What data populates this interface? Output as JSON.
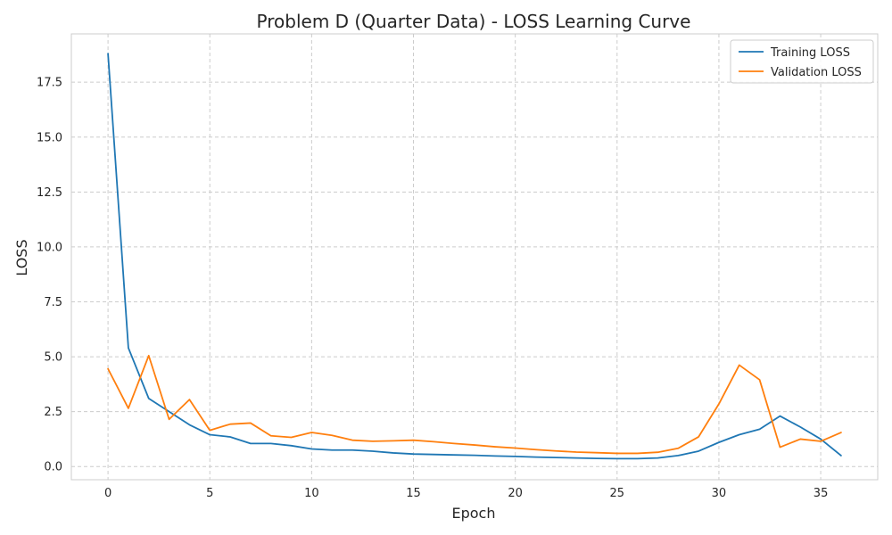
{
  "chart_data": {
    "type": "line",
    "title": "Problem D (Quarter Data) - LOSS Learning Curve",
    "xlabel": "Epoch",
    "ylabel": "LOSS",
    "xlim": [
      -1.8,
      37.8
    ],
    "ylim": [
      -0.6,
      19.7
    ],
    "x_ticks": [
      0,
      5,
      10,
      15,
      20,
      25,
      30,
      35
    ],
    "y_ticks": [
      0.0,
      2.5,
      5.0,
      7.5,
      10.0,
      12.5,
      15.0,
      17.5
    ],
    "x_tick_labels": [
      "0",
      "5",
      "10",
      "15",
      "20",
      "25",
      "30",
      "35"
    ],
    "y_tick_labels": [
      "0.0",
      "2.5",
      "5.0",
      "7.5",
      "10.0",
      "12.5",
      "15.0",
      "17.5"
    ],
    "grid": true,
    "legend_position": "top-right",
    "x": [
      0,
      1,
      2,
      3,
      4,
      5,
      6,
      7,
      8,
      9,
      10,
      11,
      12,
      13,
      14,
      15,
      16,
      17,
      18,
      19,
      20,
      21,
      22,
      23,
      24,
      25,
      26,
      27,
      28,
      29,
      30,
      31,
      32,
      33,
      34,
      35,
      36
    ],
    "series": [
      {
        "name": "Training LOSS",
        "color": "#1f77b4",
        "values": [
          18.8,
          5.4,
          3.1,
          2.5,
          1.9,
          1.45,
          1.35,
          1.05,
          1.05,
          0.95,
          0.8,
          0.75,
          0.75,
          0.7,
          0.62,
          0.57,
          0.55,
          0.53,
          0.51,
          0.48,
          0.46,
          0.43,
          0.41,
          0.39,
          0.37,
          0.36,
          0.36,
          0.39,
          0.5,
          0.7,
          1.1,
          1.45,
          1.7,
          2.3,
          1.8,
          1.25,
          0.5
        ]
      },
      {
        "name": "Validation LOSS",
        "color": "#ff7f0e",
        "values": [
          4.45,
          2.65,
          5.05,
          2.15,
          3.05,
          1.65,
          1.93,
          1.98,
          1.4,
          1.33,
          1.55,
          1.42,
          1.2,
          1.15,
          1.17,
          1.2,
          1.13,
          1.05,
          0.98,
          0.9,
          0.84,
          0.77,
          0.71,
          0.66,
          0.63,
          0.6,
          0.6,
          0.65,
          0.83,
          1.35,
          2.85,
          4.62,
          3.95,
          0.88,
          1.25,
          1.15,
          1.55
        ]
      }
    ]
  }
}
